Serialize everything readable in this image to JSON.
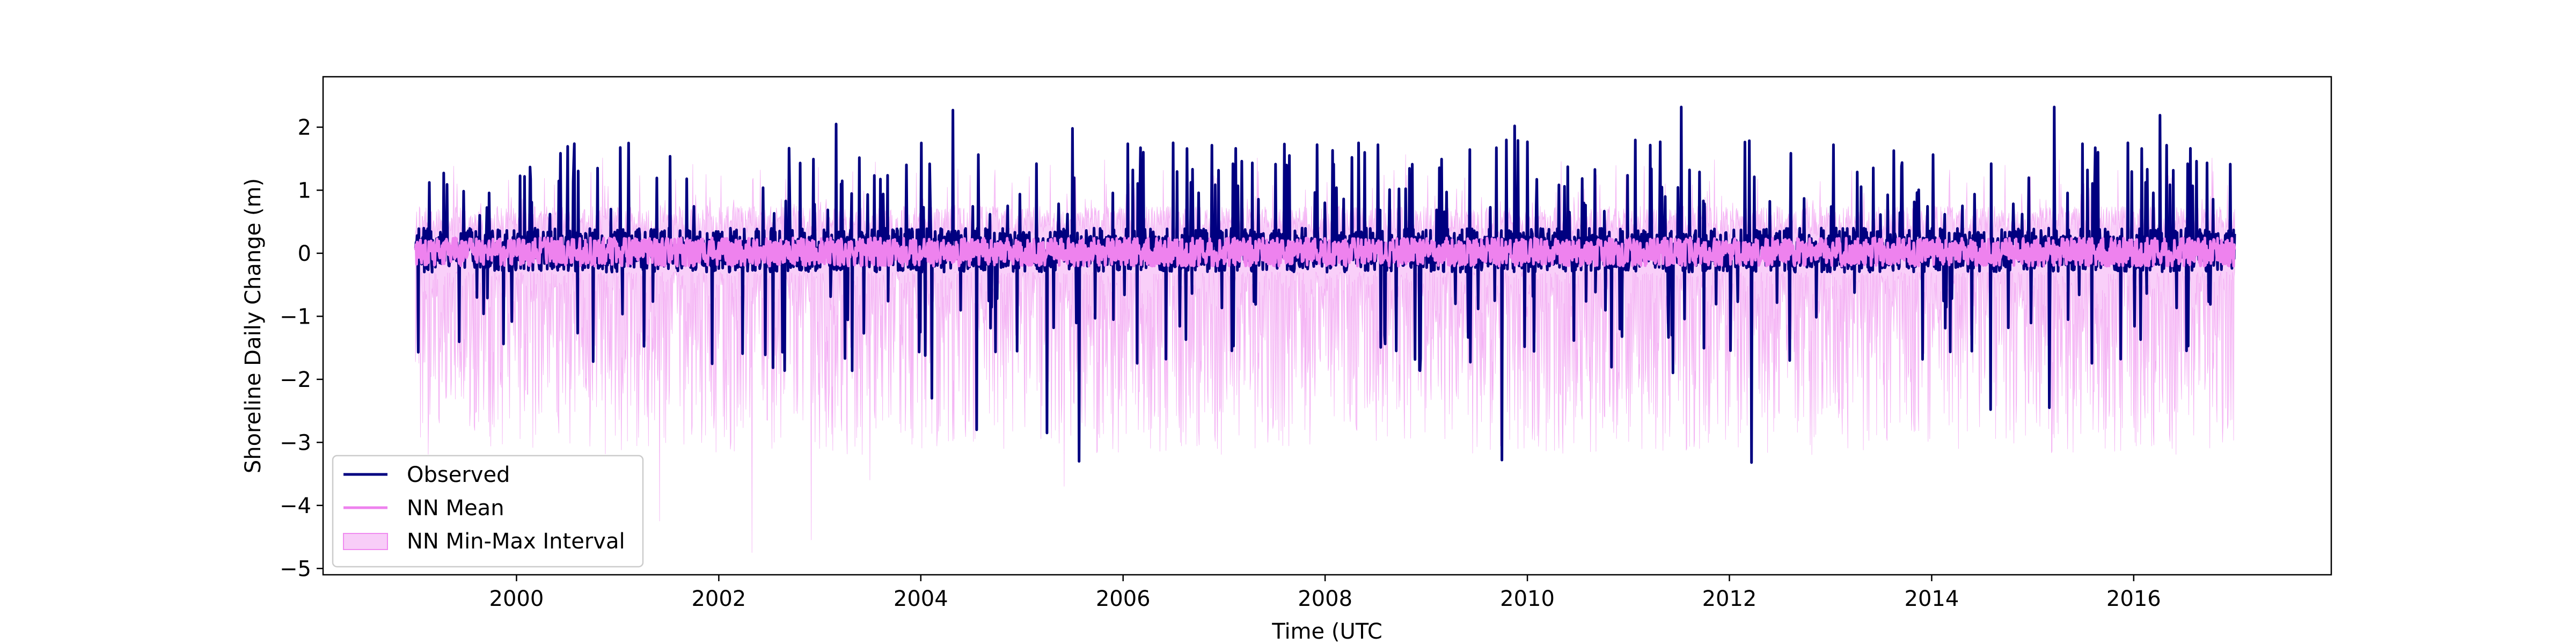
{
  "chart_data": {
    "type": "line",
    "title": "",
    "xlabel": "Time (UTC",
    "ylabel": "Shoreline Daily Change (m)",
    "xlim": [
      "1998-02-01",
      "2017-12-15"
    ],
    "ylim": [
      -5.1,
      2.8
    ],
    "x_ticks": [
      "2000",
      "2002",
      "2004",
      "2006",
      "2008",
      "2010",
      "2012",
      "2014",
      "2016"
    ],
    "y_ticks": [
      "−5",
      "−4",
      "−3",
      "−2",
      "−1",
      "0",
      "1",
      "2"
    ],
    "y_tick_values": [
      -5,
      -4,
      -3,
      -2,
      -1,
      0,
      1,
      2
    ],
    "grid": false,
    "legend_position": "lower-left",
    "time_range": [
      "1999-01-01",
      "2016-12-31"
    ],
    "series": [
      {
        "name": "Observed",
        "kind": "line",
        "color": "#000080",
        "extremes": [
          {
            "date": "2004-04-25",
            "value": 2.27
          },
          {
            "date": "2011-07-10",
            "value": 2.32
          },
          {
            "date": "2015-03-20",
            "value": 2.32
          },
          {
            "date": "2016-04-05",
            "value": 2.19
          },
          {
            "date": "2003-03-01",
            "value": 2.05
          },
          {
            "date": "2009-11-15",
            "value": 2.02
          },
          {
            "date": "2005-07-01",
            "value": 1.98
          },
          {
            "date": "2005-07-25",
            "value": -3.3
          },
          {
            "date": "2009-10-01",
            "value": -3.28
          },
          {
            "date": "2012-03-20",
            "value": -3.32
          },
          {
            "date": "2004-07-20",
            "value": -2.8
          },
          {
            "date": "2005-04-01",
            "value": -2.85
          },
          {
            "date": "2014-08-01",
            "value": -2.48
          },
          {
            "date": "2015-03-01",
            "value": -2.45
          },
          {
            "date": "2004-02-10",
            "value": -2.3
          }
        ]
      },
      {
        "name": "NN Mean",
        "kind": "line",
        "color": "#ee82ee",
        "range": [
          -0.4,
          0.45
        ]
      },
      {
        "name": "NN Min-Max Interval",
        "kind": "band",
        "color": "#ee82ee",
        "extremes": [
          {
            "date": "2002-05-01",
            "value": -4.75
          },
          {
            "date": "2002-12-01",
            "value": -4.55
          },
          {
            "date": "2001-06-01",
            "value": -4.25
          },
          {
            "date": "2005-06-01",
            "value": -3.7
          },
          {
            "date": "2003-07-01",
            "value": -3.6
          }
        ]
      }
    ]
  }
}
